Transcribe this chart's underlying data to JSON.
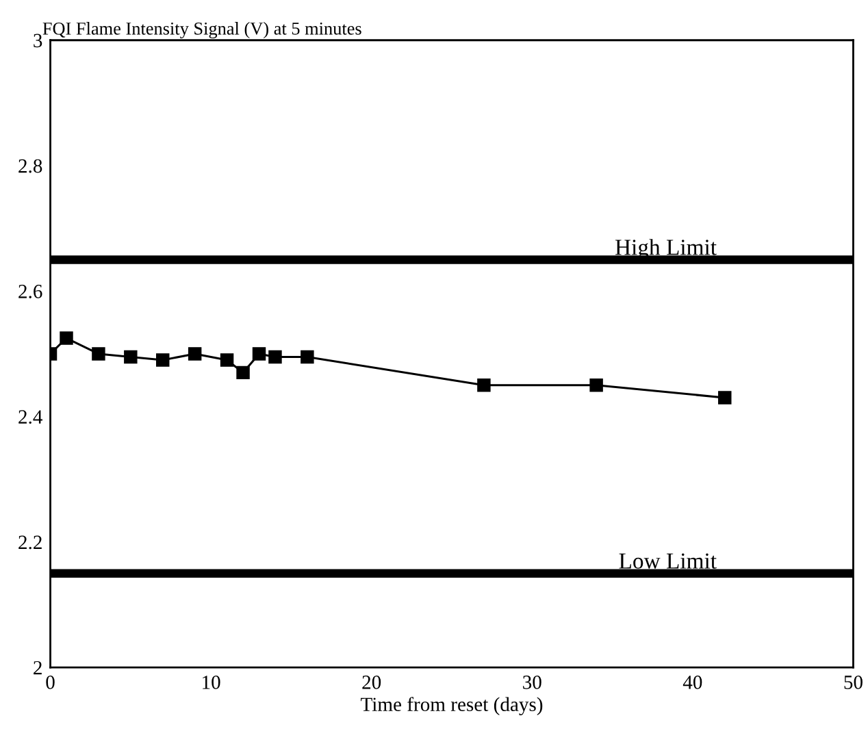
{
  "chart_data": {
    "type": "line",
    "title": "FQI Flame Intensity Signal (V) at 5 minutes",
    "xlabel": "Time from reset (days)",
    "x": [
      0,
      1,
      3,
      5,
      7,
      9,
      11,
      12,
      13,
      14,
      16,
      27,
      34,
      42
    ],
    "series": [
      {
        "color": "#000000",
        "values": [
          2.5,
          2.525,
          2.5,
          2.495,
          2.49,
          2.5,
          2.49,
          2.47,
          2.5,
          2.495,
          2.495,
          2.45,
          2.45,
          2.43
        ]
      }
    ],
    "marker": "square",
    "line_style": "solid",
    "xlim": [
      0,
      50
    ],
    "xticks": [
      0,
      10,
      20,
      30,
      40,
      50
    ],
    "ylim": [
      2,
      3
    ],
    "yticks": [
      2,
      2.2,
      2.4,
      2.6,
      2.8,
      3
    ],
    "ref_lines": [
      {
        "axis": "y",
        "value": 2.65,
        "label": "High Limit",
        "color": "#000000"
      },
      {
        "axis": "y",
        "value": 2.15,
        "label": "Low Limit",
        "color": "#000000"
      }
    ],
    "grid": false,
    "legend": false
  }
}
